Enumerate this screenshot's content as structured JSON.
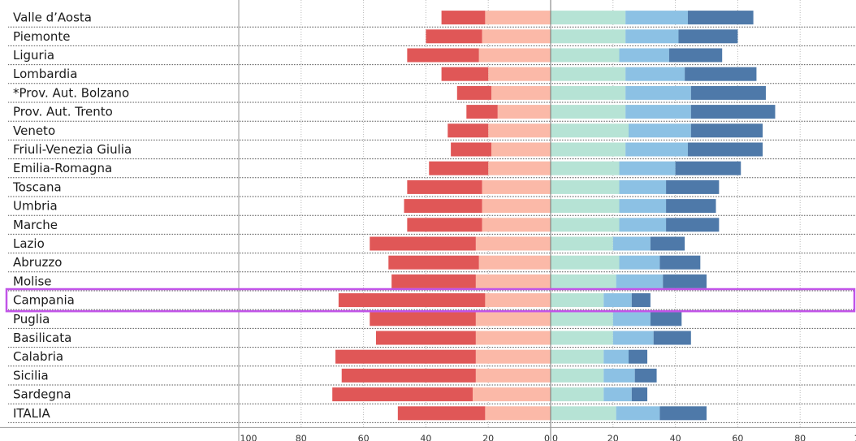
{
  "chart_data": {
    "type": "bar",
    "orientation": "horizontal-diverging",
    "stacked": true,
    "categories": [
      "Valle d’Aosta",
      "Piemonte",
      "Liguria",
      "Lombardia",
      "*Prov. Aut. Bolzano",
      "Prov. Aut. Trento",
      "Veneto",
      "Friuli-Venezia Giulia",
      "Emilia-Romagna",
      "Toscana",
      "Umbria",
      "Marche",
      "Lazio",
      "Abruzzo",
      "Molise",
      "Campania",
      "Puglia",
      "Basilicata",
      "Calabria",
      "Sicilia",
      "Sardegna",
      "ITALIA"
    ],
    "series": [
      {
        "side": "left",
        "color": "#fbb9a8",
        "values": [
          21,
          22,
          23,
          20,
          19,
          17,
          20,
          19,
          20,
          22,
          22,
          22,
          24,
          23,
          24,
          21,
          24,
          24,
          24,
          24,
          25,
          21
        ]
      },
      {
        "side": "left",
        "color": "#e05757",
        "values": [
          14,
          18,
          23,
          15,
          11,
          10,
          13,
          13,
          19,
          24,
          25,
          24,
          34,
          29,
          27,
          47,
          34,
          32,
          45,
          43,
          45,
          28
        ]
      },
      {
        "side": "right",
        "color": "#b6e3d5",
        "values": [
          24,
          24,
          22,
          24,
          24,
          24,
          25,
          24,
          22,
          22,
          22,
          22,
          20,
          22,
          21,
          17,
          20,
          20,
          17,
          17,
          17,
          21
        ]
      },
      {
        "side": "right",
        "color": "#8cc1e4",
        "values": [
          20,
          17,
          16,
          19,
          21,
          21,
          20,
          20,
          18,
          15,
          15,
          15,
          12,
          13,
          15,
          9,
          12,
          13,
          8,
          10,
          9,
          14
        ]
      },
      {
        "side": "right",
        "color": "#4e79a9",
        "values": [
          21,
          19,
          17,
          23,
          24,
          27,
          23,
          24,
          21,
          17,
          16,
          17,
          11,
          13,
          14,
          6,
          10,
          12,
          6,
          7,
          5,
          15
        ]
      }
    ],
    "x_ticks_left": [
      "100",
      "80",
      "60",
      "40",
      "20",
      "0"
    ],
    "x_ticks_right": [
      "0",
      "20",
      "40",
      "60",
      "80",
      "100"
    ],
    "xlim": [
      -100,
      100
    ],
    "grid": true,
    "highlight": "Campania",
    "highlight_color": "#c154e8"
  }
}
